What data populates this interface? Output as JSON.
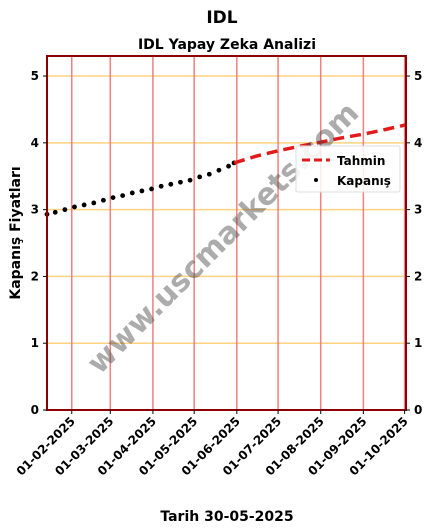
{
  "chart_data": {
    "type": "line",
    "title": "IDL",
    "subtitle": "IDL Yapay Zeka Analizi",
    "xlabel": "Tarih 30-05-2025",
    "ylabel": "Kapanış Fiyatları",
    "ylim": [
      0,
      5.3
    ],
    "y_ticks": [
      0,
      1,
      2,
      3,
      4,
      5
    ],
    "x_tick_labels": [
      "01-02-2025",
      "01-03-2025",
      "01-04-2025",
      "01-05-2025",
      "01-06-2025",
      "01-07-2025",
      "01-08-2025",
      "01-09-2025",
      "01-10-2025"
    ],
    "x_range": [
      "2025-01-14",
      "2025-10-02"
    ],
    "grid": "on",
    "legend": "right",
    "watermark": "www.uscmarkets.com",
    "series": [
      {
        "name": "Kapanış",
        "style": "dots",
        "color": "#000000",
        "x": [
          "2025-01-14",
          "2025-01-20",
          "2025-01-27",
          "2025-02-03",
          "2025-02-10",
          "2025-02-17",
          "2025-02-24",
          "2025-03-03",
          "2025-03-10",
          "2025-03-17",
          "2025-03-24",
          "2025-03-31",
          "2025-04-07",
          "2025-04-14",
          "2025-04-21",
          "2025-04-28",
          "2025-05-05",
          "2025-05-12",
          "2025-05-19",
          "2025-05-26",
          "2025-05-30"
        ],
        "y": [
          2.93,
          2.96,
          3.0,
          3.04,
          3.07,
          3.1,
          3.14,
          3.18,
          3.21,
          3.25,
          3.28,
          3.31,
          3.35,
          3.38,
          3.41,
          3.44,
          3.49,
          3.53,
          3.59,
          3.65,
          3.7
        ]
      },
      {
        "name": "Tahmin",
        "style": "dashed",
        "color": "#e31a1c",
        "x": [
          "2025-05-30",
          "2025-06-15",
          "2025-07-01",
          "2025-07-15",
          "2025-08-01",
          "2025-08-15",
          "2025-09-01",
          "2025-09-15",
          "2025-10-02"
        ],
        "y": [
          3.7,
          3.8,
          3.88,
          3.94,
          4.01,
          4.07,
          4.13,
          4.19,
          4.27
        ]
      }
    ],
    "colors": {
      "frame": "#8b0000",
      "vgrid": "#f08080",
      "hgrid": "#ffd27f"
    }
  }
}
